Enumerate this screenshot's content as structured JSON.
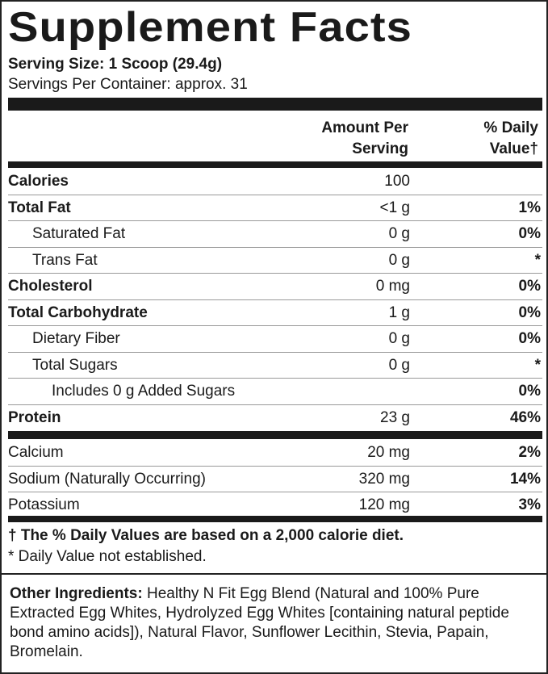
{
  "title": "Supplement Facts",
  "serving_size": "Serving Size: 1 Scoop (29.4g)",
  "servings_per_container": "Servings Per Container: approx. 31",
  "headers": {
    "amount_1": "Amount Per",
    "amount_2": "Serving",
    "dv_1": "% Daily",
    "dv_2": "Value†"
  },
  "rows": [
    {
      "name": "Calories",
      "amount": "100",
      "dv": "",
      "bold": true,
      "indent": 0
    },
    {
      "name": "Total Fat",
      "amount": "<1 g",
      "dv": "1%",
      "bold": true,
      "indent": 0
    },
    {
      "name": "Saturated Fat",
      "amount": "0 g",
      "dv": "0%",
      "bold": false,
      "indent": 1
    },
    {
      "name": "Trans Fat",
      "amount": "0 g",
      "dv": "*",
      "bold": false,
      "indent": 1
    },
    {
      "name": "Cholesterol",
      "amount": "0 mg",
      "dv": "0%",
      "bold": true,
      "indent": 0
    },
    {
      "name": "Total Carbohydrate",
      "amount": "1 g",
      "dv": "0%",
      "bold": true,
      "indent": 0
    },
    {
      "name": "Dietary Fiber",
      "amount": "0 g",
      "dv": "0%",
      "bold": false,
      "indent": 1
    },
    {
      "name": "Total Sugars",
      "amount": "0 g",
      "dv": "*",
      "bold": false,
      "indent": 1
    },
    {
      "name": "Includes 0 g Added Sugars",
      "amount": "",
      "dv": "0%",
      "bold": false,
      "indent": 2
    },
    {
      "name": "Protein",
      "amount": "23 g",
      "dv": "46%",
      "bold": true,
      "indent": 0
    }
  ],
  "minerals": [
    {
      "name": "Calcium",
      "amount": "20 mg",
      "dv": "2%"
    },
    {
      "name": "Sodium (Naturally Occurring)",
      "amount": "320 mg",
      "dv": "14%"
    },
    {
      "name": "Potassium",
      "amount": "120 mg",
      "dv": "3%"
    }
  ],
  "footnote_dv": "† The % Daily Values are based on a 2,000 calorie diet.",
  "footnote_star": "* Daily Value not established.",
  "other_ingredients": {
    "label": "Other Ingredients:",
    "text": " Healthy N Fit Egg Blend (Natural and 100% Pure Extracted Egg Whites, Hydrolyzed Egg Whites [containing natural peptide bond amino acids]), Natural Flavor, Sunflower Lecithin, Stevia, Papain, Bromelain."
  }
}
